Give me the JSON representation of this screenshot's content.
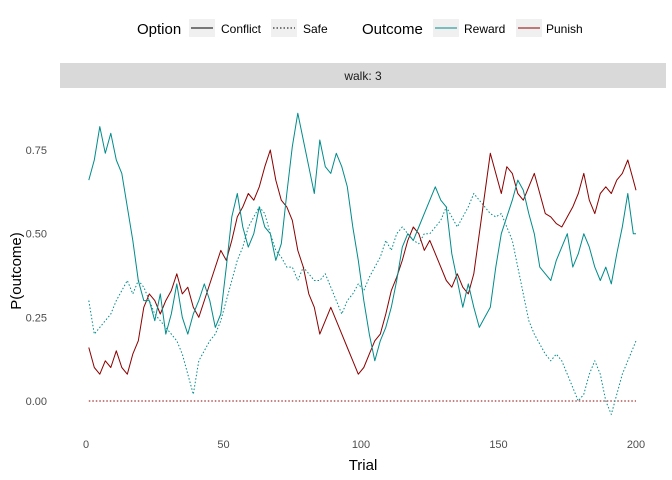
{
  "chart_data": {
    "type": "line",
    "facet_label": "walk: 3",
    "xlabel": "Trial",
    "ylabel": "P(outcome)",
    "xlim": [
      0,
      200
    ],
    "ylim": [
      -0.05,
      0.9
    ],
    "x_ticks": [
      0,
      50,
      100,
      150,
      200
    ],
    "x_tick_labels": [
      "0",
      "50",
      "100",
      "150",
      "200"
    ],
    "y_ticks": [
      0.0,
      0.25,
      0.5,
      0.75
    ],
    "y_tick_labels": [
      "0.00",
      "0.25",
      "0.50",
      "0.75"
    ],
    "grid": false,
    "legend_position": "top",
    "legend": {
      "option_title": "Option",
      "option_items": [
        {
          "label": "Conflict",
          "linetype": "solid"
        },
        {
          "label": "Safe",
          "linetype": "dotted"
        }
      ],
      "outcome_title": "Outcome",
      "outcome_items": [
        {
          "label": "Reward",
          "color": "#008b8b"
        },
        {
          "label": "Punish",
          "color": "#8b0000"
        }
      ]
    },
    "series": [
      {
        "name": "Conflict / Reward",
        "option": "Conflict",
        "outcome": "Reward",
        "color": "#008b8b",
        "dash": "solid",
        "points": [
          [
            1,
            0.66
          ],
          [
            3,
            0.72
          ],
          [
            5,
            0.82
          ],
          [
            7,
            0.74
          ],
          [
            9,
            0.8
          ],
          [
            11,
            0.72
          ],
          [
            13,
            0.68
          ],
          [
            15,
            0.58
          ],
          [
            17,
            0.48
          ],
          [
            19,
            0.36
          ],
          [
            21,
            0.3
          ],
          [
            23,
            0.3
          ],
          [
            25,
            0.24
          ],
          [
            27,
            0.32
          ],
          [
            29,
            0.2
          ],
          [
            31,
            0.26
          ],
          [
            33,
            0.35
          ],
          [
            35,
            0.25
          ],
          [
            37,
            0.2
          ],
          [
            39,
            0.26
          ],
          [
            41,
            0.3
          ],
          [
            43,
            0.35
          ],
          [
            45,
            0.3
          ],
          [
            47,
            0.22
          ],
          [
            49,
            0.26
          ],
          [
            51,
            0.4
          ],
          [
            53,
            0.55
          ],
          [
            55,
            0.62
          ],
          [
            57,
            0.52
          ],
          [
            59,
            0.46
          ],
          [
            61,
            0.5
          ],
          [
            63,
            0.58
          ],
          [
            65,
            0.52
          ],
          [
            67,
            0.5
          ],
          [
            69,
            0.42
          ],
          [
            71,
            0.47
          ],
          [
            73,
            0.62
          ],
          [
            75,
            0.76
          ],
          [
            77,
            0.86
          ],
          [
            79,
            0.78
          ],
          [
            81,
            0.7
          ],
          [
            83,
            0.62
          ],
          [
            85,
            0.78
          ],
          [
            87,
            0.7
          ],
          [
            89,
            0.68
          ],
          [
            91,
            0.74
          ],
          [
            93,
            0.7
          ],
          [
            95,
            0.64
          ],
          [
            97,
            0.52
          ],
          [
            99,
            0.42
          ],
          [
            101,
            0.3
          ],
          [
            103,
            0.2
          ],
          [
            105,
            0.12
          ],
          [
            107,
            0.18
          ],
          [
            109,
            0.22
          ],
          [
            111,
            0.28
          ],
          [
            113,
            0.36
          ],
          [
            115,
            0.46
          ],
          [
            117,
            0.5
          ],
          [
            119,
            0.48
          ],
          [
            121,
            0.52
          ],
          [
            123,
            0.56
          ],
          [
            125,
            0.6
          ],
          [
            127,
            0.64
          ],
          [
            129,
            0.6
          ],
          [
            131,
            0.58
          ],
          [
            133,
            0.44
          ],
          [
            135,
            0.36
          ],
          [
            137,
            0.28
          ],
          [
            139,
            0.35
          ],
          [
            141,
            0.28
          ],
          [
            143,
            0.22
          ],
          [
            145,
            0.25
          ],
          [
            147,
            0.28
          ],
          [
            149,
            0.4
          ],
          [
            151,
            0.5
          ],
          [
            153,
            0.55
          ],
          [
            155,
            0.6
          ],
          [
            157,
            0.66
          ],
          [
            159,
            0.63
          ],
          [
            161,
            0.56
          ],
          [
            163,
            0.5
          ],
          [
            165,
            0.4
          ],
          [
            167,
            0.38
          ],
          [
            169,
            0.36
          ],
          [
            171,
            0.42
          ],
          [
            173,
            0.46
          ],
          [
            175,
            0.5
          ],
          [
            177,
            0.4
          ],
          [
            179,
            0.44
          ],
          [
            181,
            0.5
          ],
          [
            183,
            0.46
          ],
          [
            185,
            0.4
          ],
          [
            187,
            0.36
          ],
          [
            189,
            0.4
          ],
          [
            191,
            0.35
          ],
          [
            193,
            0.44
          ],
          [
            195,
            0.52
          ],
          [
            197,
            0.62
          ],
          [
            199,
            0.5
          ],
          [
            200,
            0.5
          ]
        ]
      },
      {
        "name": "Conflict / Punish",
        "option": "Conflict",
        "outcome": "Punish",
        "color": "#8b0000",
        "dash": "solid",
        "points": [
          [
            1,
            0.16
          ],
          [
            3,
            0.1
          ],
          [
            5,
            0.08
          ],
          [
            7,
            0.12
          ],
          [
            9,
            0.1
          ],
          [
            11,
            0.15
          ],
          [
            13,
            0.1
          ],
          [
            15,
            0.08
          ],
          [
            17,
            0.14
          ],
          [
            19,
            0.18
          ],
          [
            21,
            0.28
          ],
          [
            23,
            0.32
          ],
          [
            25,
            0.3
          ],
          [
            27,
            0.26
          ],
          [
            29,
            0.3
          ],
          [
            31,
            0.33
          ],
          [
            33,
            0.38
          ],
          [
            35,
            0.32
          ],
          [
            37,
            0.34
          ],
          [
            39,
            0.28
          ],
          [
            41,
            0.25
          ],
          [
            43,
            0.3
          ],
          [
            45,
            0.35
          ],
          [
            47,
            0.4
          ],
          [
            49,
            0.45
          ],
          [
            51,
            0.42
          ],
          [
            53,
            0.48
          ],
          [
            55,
            0.55
          ],
          [
            57,
            0.58
          ],
          [
            59,
            0.62
          ],
          [
            61,
            0.6
          ],
          [
            63,
            0.64
          ],
          [
            65,
            0.7
          ],
          [
            67,
            0.75
          ],
          [
            69,
            0.66
          ],
          [
            71,
            0.6
          ],
          [
            73,
            0.58
          ],
          [
            75,
            0.54
          ],
          [
            77,
            0.45
          ],
          [
            79,
            0.4
          ],
          [
            81,
            0.32
          ],
          [
            83,
            0.28
          ],
          [
            85,
            0.2
          ],
          [
            87,
            0.24
          ],
          [
            89,
            0.28
          ],
          [
            91,
            0.24
          ],
          [
            93,
            0.2
          ],
          [
            95,
            0.16
          ],
          [
            97,
            0.12
          ],
          [
            99,
            0.08
          ],
          [
            101,
            0.1
          ],
          [
            103,
            0.14
          ],
          [
            105,
            0.18
          ],
          [
            107,
            0.2
          ],
          [
            109,
            0.26
          ],
          [
            111,
            0.33
          ],
          [
            113,
            0.37
          ],
          [
            115,
            0.42
          ],
          [
            117,
            0.48
          ],
          [
            119,
            0.52
          ],
          [
            121,
            0.5
          ],
          [
            123,
            0.45
          ],
          [
            125,
            0.48
          ],
          [
            127,
            0.44
          ],
          [
            129,
            0.4
          ],
          [
            131,
            0.36
          ],
          [
            133,
            0.34
          ],
          [
            135,
            0.38
          ],
          [
            137,
            0.34
          ],
          [
            139,
            0.32
          ],
          [
            141,
            0.38
          ],
          [
            143,
            0.5
          ],
          [
            145,
            0.62
          ],
          [
            147,
            0.74
          ],
          [
            149,
            0.68
          ],
          [
            151,
            0.62
          ],
          [
            153,
            0.7
          ],
          [
            155,
            0.68
          ],
          [
            157,
            0.62
          ],
          [
            159,
            0.6
          ],
          [
            161,
            0.64
          ],
          [
            163,
            0.68
          ],
          [
            165,
            0.62
          ],
          [
            167,
            0.56
          ],
          [
            169,
            0.55
          ],
          [
            171,
            0.53
          ],
          [
            173,
            0.52
          ],
          [
            175,
            0.55
          ],
          [
            177,
            0.58
          ],
          [
            179,
            0.62
          ],
          [
            181,
            0.68
          ],
          [
            183,
            0.6
          ],
          [
            185,
            0.56
          ],
          [
            187,
            0.62
          ],
          [
            189,
            0.64
          ],
          [
            191,
            0.62
          ],
          [
            193,
            0.66
          ],
          [
            195,
            0.68
          ],
          [
            197,
            0.72
          ],
          [
            199,
            0.66
          ],
          [
            200,
            0.63
          ]
        ]
      },
      {
        "name": "Safe / Reward",
        "option": "Safe",
        "outcome": "Reward",
        "color": "#008b8b",
        "dash": "dotted",
        "points": [
          [
            1,
            0.3
          ],
          [
            3,
            0.2
          ],
          [
            5,
            0.22
          ],
          [
            7,
            0.24
          ],
          [
            9,
            0.26
          ],
          [
            11,
            0.3
          ],
          [
            13,
            0.33
          ],
          [
            15,
            0.36
          ],
          [
            17,
            0.32
          ],
          [
            19,
            0.36
          ],
          [
            21,
            0.34
          ],
          [
            23,
            0.3
          ],
          [
            25,
            0.26
          ],
          [
            27,
            0.24
          ],
          [
            29,
            0.22
          ],
          [
            31,
            0.2
          ],
          [
            33,
            0.18
          ],
          [
            35,
            0.14
          ],
          [
            37,
            0.08
          ],
          [
            39,
            0.02
          ],
          [
            41,
            0.12
          ],
          [
            43,
            0.15
          ],
          [
            45,
            0.18
          ],
          [
            47,
            0.2
          ],
          [
            49,
            0.24
          ],
          [
            51,
            0.3
          ],
          [
            53,
            0.36
          ],
          [
            55,
            0.42
          ],
          [
            57,
            0.46
          ],
          [
            59,
            0.52
          ],
          [
            61,
            0.55
          ],
          [
            63,
            0.58
          ],
          [
            65,
            0.56
          ],
          [
            67,
            0.5
          ],
          [
            69,
            0.45
          ],
          [
            71,
            0.43
          ],
          [
            73,
            0.4
          ],
          [
            75,
            0.4
          ],
          [
            77,
            0.36
          ],
          [
            79,
            0.4
          ],
          [
            81,
            0.38
          ],
          [
            83,
            0.36
          ],
          [
            85,
            0.36
          ],
          [
            87,
            0.38
          ],
          [
            89,
            0.34
          ],
          [
            91,
            0.3
          ],
          [
            93,
            0.26
          ],
          [
            95,
            0.3
          ],
          [
            97,
            0.32
          ],
          [
            99,
            0.35
          ],
          [
            101,
            0.33
          ],
          [
            103,
            0.37
          ],
          [
            105,
            0.4
          ],
          [
            107,
            0.43
          ],
          [
            109,
            0.48
          ],
          [
            111,
            0.45
          ],
          [
            113,
            0.5
          ],
          [
            115,
            0.52
          ],
          [
            117,
            0.5
          ],
          [
            119,
            0.48
          ],
          [
            121,
            0.47
          ],
          [
            123,
            0.5
          ],
          [
            125,
            0.5
          ],
          [
            127,
            0.52
          ],
          [
            129,
            0.54
          ],
          [
            131,
            0.58
          ],
          [
            133,
            0.55
          ],
          [
            135,
            0.52
          ],
          [
            137,
            0.55
          ],
          [
            139,
            0.58
          ],
          [
            141,
            0.62
          ],
          [
            143,
            0.6
          ],
          [
            145,
            0.58
          ],
          [
            147,
            0.56
          ],
          [
            149,
            0.55
          ],
          [
            151,
            0.56
          ],
          [
            153,
            0.52
          ],
          [
            155,
            0.48
          ],
          [
            157,
            0.4
          ],
          [
            159,
            0.32
          ],
          [
            161,
            0.24
          ],
          [
            163,
            0.2
          ],
          [
            165,
            0.17
          ],
          [
            167,
            0.14
          ],
          [
            169,
            0.12
          ],
          [
            171,
            0.14
          ],
          [
            173,
            0.12
          ],
          [
            175,
            0.08
          ],
          [
            177,
            0.04
          ],
          [
            179,
            0.0
          ],
          [
            181,
            0.02
          ],
          [
            183,
            0.08
          ],
          [
            185,
            0.12
          ],
          [
            187,
            0.08
          ],
          [
            189,
            0.0
          ],
          [
            191,
            -0.04
          ],
          [
            193,
            0.02
          ],
          [
            195,
            0.08
          ],
          [
            197,
            0.12
          ],
          [
            199,
            0.16
          ],
          [
            200,
            0.18
          ]
        ]
      },
      {
        "name": "Safe / Punish",
        "option": "Safe",
        "outcome": "Punish",
        "color": "#8b0000",
        "dash": "dotted",
        "points": [
          [
            1,
            0.0
          ],
          [
            200,
            0.0
          ]
        ]
      }
    ]
  }
}
